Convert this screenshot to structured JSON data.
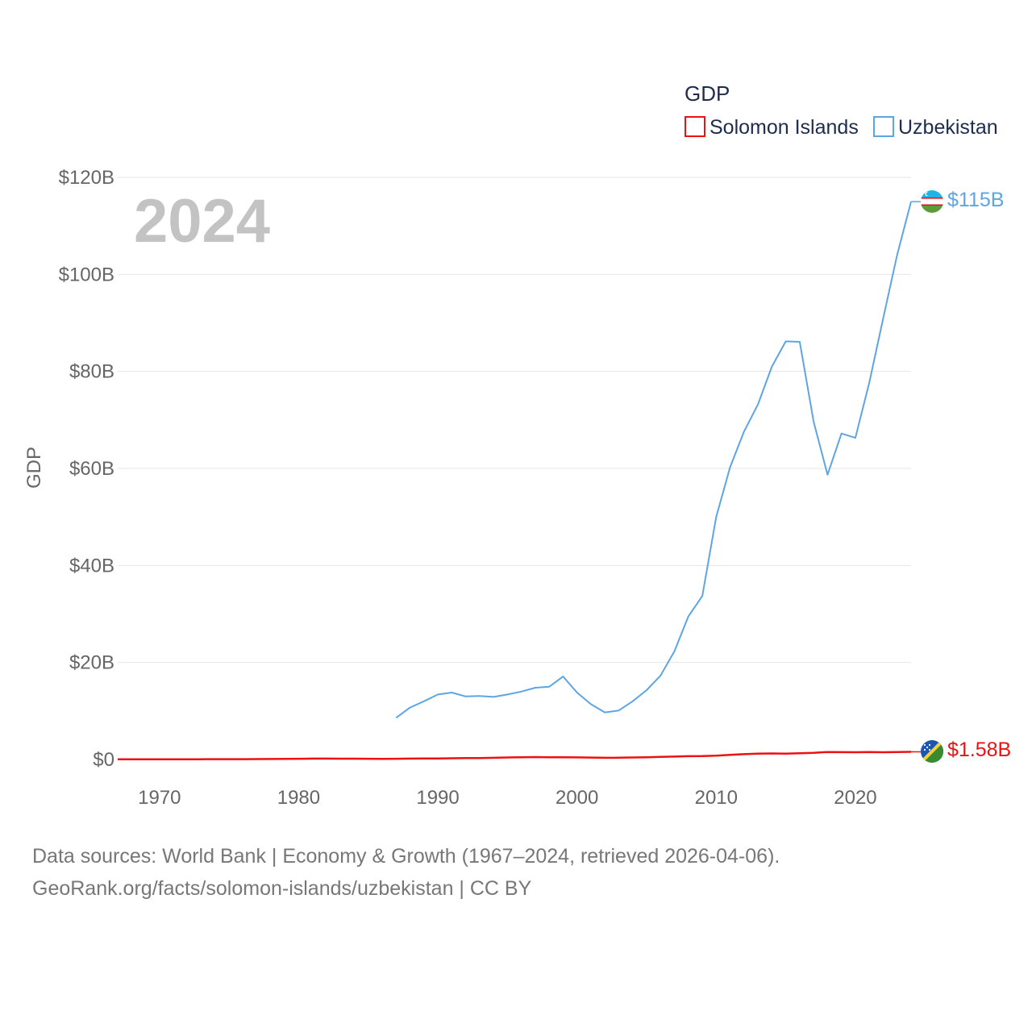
{
  "chart_data": {
    "type": "line",
    "legend_title": "GDP",
    "ylabel": "GDP",
    "year_label": "2024",
    "x_ticks": [
      "1970",
      "1980",
      "1990",
      "2000",
      "2010",
      "2020"
    ],
    "x_tick_values": [
      1970,
      1980,
      1990,
      2000,
      2010,
      2020
    ],
    "xlim": [
      1967,
      2024
    ],
    "y_ticks": [
      "$0",
      "$20B",
      "$40B",
      "$60B",
      "$80B",
      "$100B",
      "$120B"
    ],
    "y_tick_values": [
      0,
      20,
      40,
      60,
      80,
      100,
      120
    ],
    "ylim": [
      0,
      120
    ],
    "value_unit": "billion USD",
    "series": [
      {
        "name": "Solomon Islands",
        "color": "#ee1111",
        "end_label": "$1.58B",
        "flag": "solomon-islands-flag",
        "x": [
          1967,
          1968,
          1969,
          1970,
          1971,
          1972,
          1973,
          1974,
          1975,
          1976,
          1977,
          1978,
          1979,
          1980,
          1981,
          1982,
          1983,
          1984,
          1985,
          1986,
          1987,
          1988,
          1989,
          1990,
          1991,
          1992,
          1993,
          1994,
          1995,
          1996,
          1997,
          1998,
          1999,
          2000,
          2001,
          2002,
          2003,
          2004,
          2005,
          2006,
          2007,
          2008,
          2009,
          2010,
          2011,
          2012,
          2013,
          2014,
          2015,
          2016,
          2017,
          2018,
          2019,
          2020,
          2021,
          2022,
          2023,
          2024
        ],
        "values": [
          0.03,
          0.03,
          0.03,
          0.03,
          0.04,
          0.04,
          0.05,
          0.06,
          0.06,
          0.07,
          0.08,
          0.1,
          0.12,
          0.15,
          0.18,
          0.18,
          0.16,
          0.17,
          0.15,
          0.13,
          0.15,
          0.18,
          0.2,
          0.22,
          0.25,
          0.28,
          0.3,
          0.35,
          0.42,
          0.47,
          0.5,
          0.45,
          0.45,
          0.43,
          0.4,
          0.35,
          0.37,
          0.42,
          0.47,
          0.53,
          0.6,
          0.68,
          0.7,
          0.78,
          0.95,
          1.1,
          1.2,
          1.25,
          1.2,
          1.3,
          1.38,
          1.55,
          1.52,
          1.5,
          1.55,
          1.5,
          1.55,
          1.58
        ]
      },
      {
        "name": "Uzbekistan",
        "color": "#5ea5e3",
        "end_label": "$115B",
        "flag": "uzbekistan-flag",
        "x": [
          1987,
          1988,
          1989,
          1990,
          1991,
          1992,
          1993,
          1994,
          1995,
          1996,
          1997,
          1998,
          1999,
          2000,
          2001,
          2002,
          2003,
          2004,
          2005,
          2006,
          2007,
          2008,
          2009,
          2010,
          2011,
          2012,
          2013,
          2014,
          2015,
          2016,
          2017,
          2018,
          2019,
          2020,
          2021,
          2022,
          2023,
          2024
        ],
        "values": [
          8.6,
          10.7,
          12.0,
          13.4,
          13.8,
          13.0,
          13.1,
          12.9,
          13.4,
          14.0,
          14.8,
          15.0,
          17.1,
          13.8,
          11.4,
          9.7,
          10.1,
          12.0,
          14.3,
          17.3,
          22.3,
          29.5,
          33.7,
          50.0,
          60.3,
          67.6,
          73.2,
          81.0,
          86.2,
          86.1,
          69.6,
          58.7,
          67.2,
          66.3,
          77.7,
          91.0,
          104.0,
          115.0
        ]
      }
    ]
  },
  "footer": {
    "line1": "Data sources: World Bank | Economy & Growth (1967–2024, retrieved 2026-04-06).",
    "line2": "GeoRank.org/facts/solomon-islands/uzbekistan | CC BY"
  }
}
